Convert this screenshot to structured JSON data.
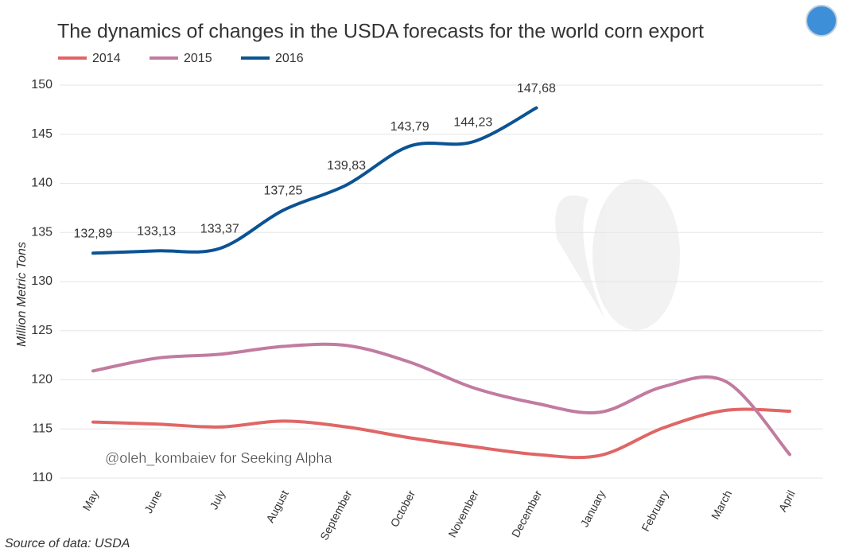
{
  "chart_data": {
    "type": "line",
    "title": "The dynamics of changes in the USDA forecasts for the world corn export",
    "y_label": "Million Metric Tons",
    "source": "Source of data: USDA",
    "watermark": "@oleh_kombaiev for Seeking Alpha",
    "categories": [
      "May",
      "June",
      "July",
      "August",
      "September",
      "October",
      "November",
      "December",
      "January",
      "February",
      "March",
      "April"
    ],
    "series": [
      {
        "name": "2014",
        "color": "#e06666",
        "values": [
          115.7,
          115.5,
          115.2,
          115.8,
          115.2,
          114.1,
          113.2,
          112.4,
          112.3,
          115.1,
          116.9,
          116.8
        ]
      },
      {
        "name": "2015",
        "color": "#c27ba0",
        "values": [
          120.9,
          122.2,
          122.6,
          123.4,
          123.5,
          121.8,
          119.2,
          117.6,
          116.7,
          119.3,
          119.8,
          112.4
        ]
      },
      {
        "name": "2016",
        "color": "#0b5394",
        "values": [
          132.89,
          133.13,
          133.37,
          137.25,
          139.83,
          143.79,
          144.23,
          147.68,
          null,
          null,
          null,
          null
        ],
        "value_labels": [
          "132,89",
          "133,13",
          "133,37",
          "137,25",
          "139,83",
          "143,79",
          "144,23",
          "147,68",
          null,
          null,
          null,
          null
        ]
      }
    ],
    "ylim": [
      110,
      150
    ],
    "yticks": [
      110,
      115,
      120,
      125,
      130,
      135,
      140,
      145,
      150
    ],
    "grid": true
  }
}
